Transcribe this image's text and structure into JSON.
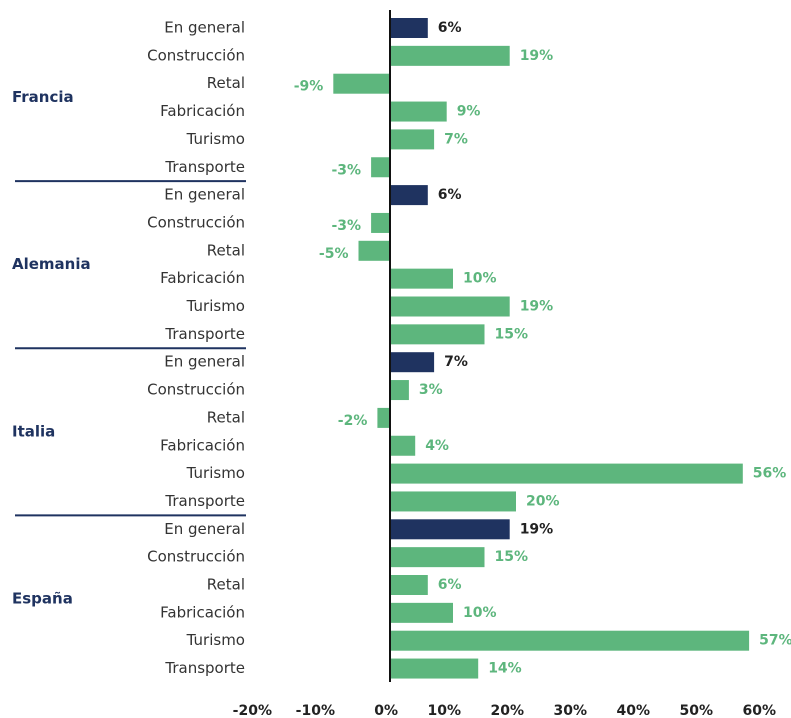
{
  "chart_data": {
    "type": "bar",
    "orientation": "horizontal",
    "groups": [
      {
        "name": "Francia",
        "categories": [
          "En general",
          "Construcción",
          "Retal",
          "Fabricación",
          "Turismo",
          "Transporte"
        ],
        "values": [
          6,
          19,
          -9,
          9,
          7,
          -3
        ],
        "value_labels": [
          "6%",
          "19%",
          "-9%",
          "9%",
          "7%",
          "-3%"
        ],
        "colors": [
          "#1f3360",
          "#5db67d",
          "#5db67d",
          "#5db67d",
          "#5db67d",
          "#5db67d"
        ]
      },
      {
        "name": "Alemania",
        "categories": [
          "En general",
          "Construcción",
          "Retal",
          "Fabricación",
          "Turismo",
          "Transporte"
        ],
        "values": [
          6,
          -3,
          -5,
          10,
          19,
          15
        ],
        "value_labels": [
          "6%",
          "-3%",
          "-5%",
          "10%",
          "19%",
          "15%"
        ],
        "colors": [
          "#1f3360",
          "#5db67d",
          "#5db67d",
          "#5db67d",
          "#5db67d",
          "#5db67d"
        ]
      },
      {
        "name": "Italia",
        "categories": [
          "En general",
          "Construcción",
          "Retal",
          "Fabricación",
          "Turismo",
          "Transporte"
        ],
        "values": [
          7,
          3,
          -2,
          4,
          56,
          20
        ],
        "value_labels": [
          "7%",
          "3%",
          "-2%",
          "4%",
          "56%",
          "20%"
        ],
        "colors": [
          "#1f3360",
          "#5db67d",
          "#5db67d",
          "#5db67d",
          "#5db67d",
          "#5db67d"
        ]
      },
      {
        "name": "España",
        "categories": [
          "En general",
          "Construcción",
          "Retal",
          "Fabricación",
          "Turismo",
          "Transporte"
        ],
        "values": [
          19,
          15,
          6,
          10,
          57,
          14
        ],
        "value_labels": [
          "19%",
          "15%",
          "6%",
          "10%",
          "57%",
          "14%"
        ],
        "colors": [
          "#1f3360",
          "#5db67d",
          "#5db67d",
          "#5db67d",
          "#5db67d",
          "#5db67d"
        ]
      }
    ],
    "xlim": [
      -20,
      60
    ],
    "xticks": [
      {
        "value": -20,
        "label": "-20%"
      },
      {
        "value": -10,
        "label": "-10%"
      },
      {
        "value": 0,
        "label": "0%"
      },
      {
        "value": 10,
        "label": "10%"
      },
      {
        "value": 20,
        "label": "20%"
      },
      {
        "value": 30,
        "label": "30%"
      },
      {
        "value": 40,
        "label": "40%"
      },
      {
        "value": 50,
        "label": "50%"
      },
      {
        "value": 60,
        "label": "60%"
      }
    ]
  }
}
